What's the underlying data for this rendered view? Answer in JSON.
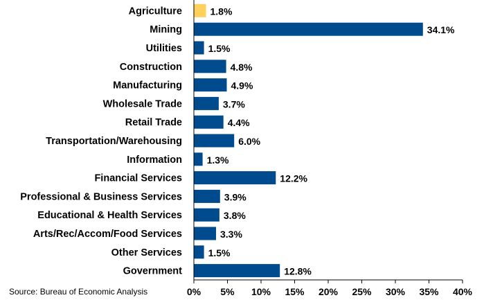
{
  "chart_data": {
    "type": "bar",
    "orientation": "horizontal",
    "categories": [
      "Agriculture",
      "Mining",
      "Utilities",
      "Construction",
      "Manufacturing",
      "Wholesale Trade",
      "Retail Trade",
      "Transportation/Warehousing",
      "Information",
      "Financial Services",
      "Professional & Business Services",
      "Educational & Health Services",
      "Arts/Rec/Accom/Food Services",
      "Other Services",
      "Government"
    ],
    "values": [
      1.8,
      34.1,
      1.5,
      4.8,
      4.9,
      3.7,
      4.4,
      6.0,
      1.3,
      12.2,
      3.9,
      3.8,
      3.3,
      1.5,
      12.8
    ],
    "value_labels": [
      "1.8%",
      "34.1%",
      "1.5%",
      "4.8%",
      "4.9%",
      "3.7%",
      "4.4%",
      "6.0%",
      "1.3%",
      "12.2%",
      "3.9%",
      "3.8%",
      "3.3%",
      "1.5%",
      "12.8%"
    ],
    "bar_colors": [
      "#FFD15C",
      "#004B8D",
      "#004B8D",
      "#004B8D",
      "#004B8D",
      "#004B8D",
      "#004B8D",
      "#004B8D",
      "#004B8D",
      "#004B8D",
      "#004B8D",
      "#004B8D",
      "#004B8D",
      "#004B8D",
      "#004B8D"
    ],
    "xlim": [
      0,
      40
    ],
    "x_ticks": [
      "0%",
      "5%",
      "10%",
      "15%",
      "20%",
      "25%",
      "30%",
      "35%",
      "40%"
    ],
    "title": "",
    "xlabel": "",
    "ylabel": "",
    "grid": false,
    "legend": "none"
  },
  "footer": {
    "source": "Source: Bureau of Economic Analysis"
  },
  "colors": {
    "highlight": "#FFD15C",
    "bar": "#004B8D",
    "axis": "#000000"
  }
}
